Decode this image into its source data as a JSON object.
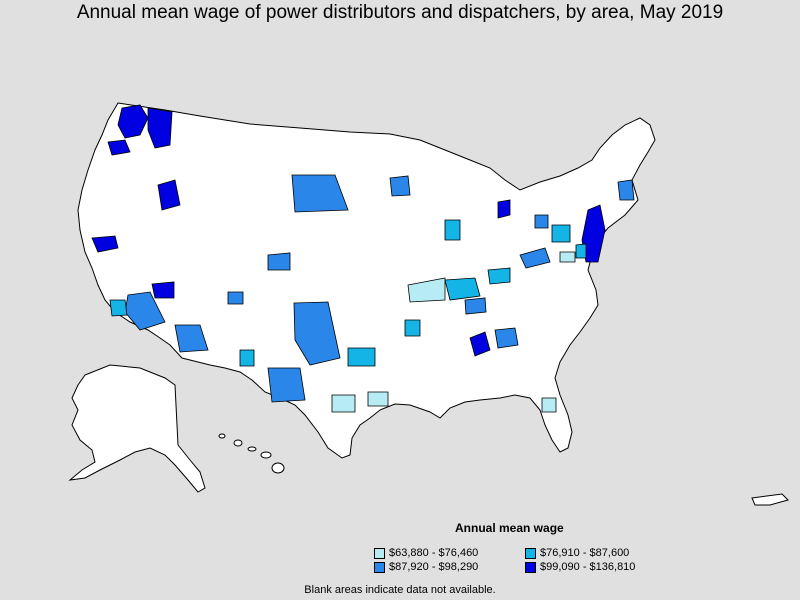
{
  "title": "Annual mean wage of power distributors and dispatchers, by area, May 2019",
  "legend": {
    "title": "Annual mean wage",
    "items": [
      {
        "label": "$63,880 - $76,460",
        "color": "#b7ecf4"
      },
      {
        "label": "$76,910 - $87,600",
        "color": "#14b4e6"
      },
      {
        "label": "$87,920 - $98,290",
        "color": "#2a86e8"
      },
      {
        "label": "$99,090 - $136,810",
        "color": "#0000e0"
      }
    ]
  },
  "footnote": "Blank areas indicate data not available.",
  "colors": {
    "background": "#e0e0e0",
    "no_data": "#ffffff",
    "border": "#000000"
  }
}
